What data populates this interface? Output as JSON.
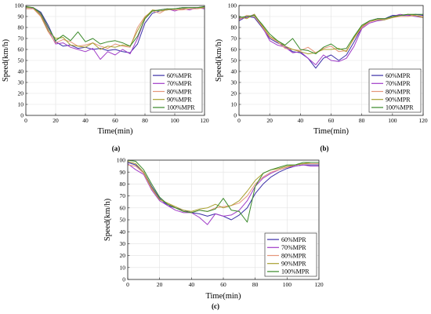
{
  "legend": [
    "60%MPR",
    "70%MPR",
    "80%MPR",
    "90%MPR",
    "100%MPR"
  ],
  "series_colors": [
    "#3b2fa8",
    "#a03cc8",
    "#e6967a",
    "#a8a030",
    "#3a8a2a"
  ],
  "panels": [
    "(a)",
    "(b)",
    "(c)"
  ],
  "xlabel": "Time(min)",
  "ylabel": "Speed(km/h)",
  "xticks": [
    "0",
    "20",
    "40",
    "60",
    "80",
    "100",
    "120"
  ],
  "yticks": [
    "0",
    "10",
    "20",
    "30",
    "40",
    "50",
    "60",
    "70",
    "80",
    "90",
    "100"
  ],
  "chart_data": [
    {
      "type": "line",
      "panel": "(a)",
      "xlabel": "Time(min)",
      "ylabel": "Speed(km/h)",
      "xlim": [
        0,
        120
      ],
      "ylim": [
        0,
        100
      ],
      "grid": true,
      "legend_position": "lower-right",
      "series": [
        {
          "name": "60%MPR",
          "x": [
            0,
            5,
            10,
            15,
            20,
            25,
            30,
            35,
            40,
            45,
            50,
            55,
            60,
            65,
            70,
            75,
            80,
            85,
            90,
            95,
            100,
            105,
            110,
            115,
            120
          ],
          "y": [
            98,
            98,
            94,
            82,
            67,
            63,
            64,
            61,
            62,
            60,
            61,
            59,
            60,
            58,
            57,
            65,
            84,
            93,
            95,
            96,
            97,
            98,
            98,
            98,
            99
          ]
        },
        {
          "name": "70%MPR",
          "x": [
            0,
            5,
            10,
            15,
            20,
            25,
            30,
            35,
            40,
            45,
            50,
            55,
            60,
            65,
            70,
            75,
            80,
            85,
            90,
            95,
            100,
            105,
            110,
            115,
            120
          ],
          "y": [
            99,
            97,
            92,
            78,
            65,
            66,
            62,
            60,
            58,
            61,
            51,
            58,
            55,
            60,
            56,
            70,
            88,
            95,
            96,
            97,
            95,
            97,
            96,
            98,
            97
          ]
        },
        {
          "name": "80%MPR",
          "x": [
            0,
            5,
            10,
            15,
            20,
            25,
            30,
            35,
            40,
            45,
            50,
            55,
            60,
            65,
            70,
            75,
            80,
            85,
            90,
            95,
            100,
            105,
            110,
            115,
            120
          ],
          "y": [
            97,
            97,
            90,
            76,
            66,
            69,
            67,
            63,
            64,
            66,
            63,
            61,
            65,
            63,
            62,
            80,
            90,
            95,
            93,
            97,
            96,
            96,
            97,
            97,
            98
          ]
        },
        {
          "name": "90%MPR",
          "x": [
            0,
            5,
            10,
            15,
            20,
            25,
            30,
            35,
            40,
            45,
            50,
            55,
            60,
            65,
            70,
            75,
            80,
            85,
            90,
            95,
            100,
            105,
            110,
            115,
            120
          ],
          "y": [
            98,
            98,
            91,
            77,
            70,
            71,
            64,
            63,
            62,
            66,
            60,
            63,
            62,
            64,
            63,
            77,
            89,
            96,
            95,
            96,
            97,
            97,
            98,
            98,
            98
          ]
        },
        {
          "name": "100%MPR",
          "x": [
            0,
            5,
            10,
            15,
            20,
            25,
            30,
            35,
            40,
            45,
            50,
            55,
            60,
            65,
            70,
            75,
            80,
            85,
            90,
            95,
            100,
            105,
            110,
            115,
            120
          ],
          "y": [
            99,
            98,
            93,
            80,
            68,
            73,
            68,
            76,
            67,
            70,
            65,
            67,
            68,
            66,
            63,
            72,
            88,
            95,
            96,
            97,
            97,
            98,
            98,
            98,
            99
          ]
        }
      ]
    },
    {
      "type": "line",
      "panel": "(b)",
      "xlabel": "Time(min)",
      "ylabel": "Speed(km/h)",
      "xlim": [
        0,
        120
      ],
      "ylim": [
        0,
        100
      ],
      "grid": true,
      "legend_position": "lower-right",
      "series": [
        {
          "name": "60%MPR",
          "x": [
            0,
            5,
            10,
            15,
            20,
            25,
            30,
            35,
            40,
            45,
            50,
            55,
            60,
            65,
            70,
            75,
            80,
            85,
            90,
            95,
            100,
            105,
            110,
            115,
            120
          ],
          "y": [
            86,
            90,
            89,
            80,
            70,
            66,
            63,
            58,
            57,
            52,
            43,
            52,
            55,
            50,
            55,
            67,
            80,
            86,
            88,
            88,
            91,
            91,
            91,
            92,
            91
          ]
        },
        {
          "name": "70%MPR",
          "x": [
            0,
            5,
            10,
            15,
            20,
            25,
            30,
            35,
            40,
            45,
            50,
            55,
            60,
            65,
            70,
            75,
            80,
            85,
            90,
            95,
            100,
            105,
            110,
            115,
            120
          ],
          "y": [
            88,
            89,
            92,
            81,
            68,
            64,
            62,
            57,
            58,
            52,
            46,
            55,
            50,
            49,
            52,
            63,
            79,
            84,
            86,
            87,
            90,
            92,
            91,
            90,
            89
          ]
        },
        {
          "name": "80%MPR",
          "x": [
            0,
            5,
            10,
            15,
            20,
            25,
            30,
            35,
            40,
            45,
            50,
            55,
            60,
            65,
            70,
            75,
            80,
            85,
            90,
            95,
            100,
            105,
            110,
            115,
            120
          ],
          "y": [
            87,
            91,
            90,
            81,
            71,
            67,
            61,
            60,
            59,
            62,
            57,
            61,
            63,
            58,
            59,
            70,
            80,
            85,
            87,
            88,
            89,
            90,
            90,
            91,
            90
          ]
        },
        {
          "name": "90%MPR",
          "x": [
            0,
            5,
            10,
            15,
            20,
            25,
            30,
            35,
            40,
            45,
            50,
            55,
            60,
            65,
            70,
            75,
            80,
            85,
            90,
            95,
            100,
            105,
            110,
            115,
            120
          ],
          "y": [
            90,
            88,
            92,
            82,
            72,
            68,
            63,
            60,
            58,
            56,
            57,
            60,
            60,
            61,
            58,
            71,
            81,
            86,
            87,
            87,
            89,
            91,
            92,
            91,
            89
          ]
        },
        {
          "name": "100%MPR",
          "x": [
            0,
            5,
            10,
            15,
            20,
            25,
            30,
            35,
            40,
            45,
            50,
            55,
            60,
            65,
            70,
            75,
            80,
            85,
            90,
            95,
            100,
            105,
            110,
            115,
            120
          ],
          "y": [
            89,
            90,
            91,
            83,
            74,
            68,
            64,
            70,
            60,
            59,
            56,
            62,
            65,
            60,
            61,
            72,
            82,
            86,
            88,
            88,
            90,
            91,
            92,
            92,
            92
          ]
        }
      ]
    },
    {
      "type": "line",
      "panel": "(c)",
      "xlabel": "Time(min)",
      "ylabel": "Speed(km/h)",
      "xlim": [
        0,
        120
      ],
      "ylim": [
        0,
        100
      ],
      "grid": true,
      "legend_position": "lower-right",
      "series": [
        {
          "name": "60%MPR",
          "x": [
            0,
            5,
            10,
            15,
            20,
            25,
            30,
            35,
            40,
            45,
            50,
            55,
            60,
            65,
            70,
            75,
            80,
            85,
            90,
            95,
            100,
            105,
            110,
            115,
            120
          ],
          "y": [
            98,
            96,
            90,
            78,
            68,
            62,
            60,
            58,
            56,
            55,
            53,
            55,
            53,
            50,
            54,
            60,
            72,
            80,
            86,
            90,
            93,
            95,
            96,
            96,
            96
          ]
        },
        {
          "name": "70%MPR",
          "x": [
            0,
            5,
            10,
            15,
            20,
            25,
            30,
            35,
            40,
            45,
            50,
            55,
            60,
            65,
            70,
            75,
            80,
            85,
            90,
            95,
            100,
            105,
            110,
            115,
            120
          ],
          "y": [
            97,
            92,
            88,
            75,
            66,
            62,
            58,
            56,
            56,
            52,
            46,
            55,
            53,
            54,
            58,
            66,
            78,
            85,
            89,
            92,
            94,
            95,
            96,
            95,
            95
          ]
        },
        {
          "name": "80%MPR",
          "x": [
            0,
            5,
            10,
            15,
            20,
            25,
            30,
            35,
            40,
            45,
            50,
            55,
            60,
            65,
            70,
            75,
            80,
            85,
            90,
            95,
            100,
            105,
            110,
            115,
            120
          ],
          "y": [
            96,
            95,
            89,
            76,
            67,
            64,
            60,
            57,
            56,
            58,
            57,
            60,
            61,
            62,
            64,
            70,
            80,
            86,
            90,
            92,
            94,
            96,
            97,
            97,
            97
          ]
        },
        {
          "name": "90%MPR",
          "x": [
            0,
            5,
            10,
            15,
            20,
            25,
            30,
            35,
            40,
            45,
            50,
            55,
            60,
            65,
            70,
            75,
            80,
            85,
            90,
            95,
            100,
            105,
            110,
            115,
            120
          ],
          "y": [
            99,
            97,
            90,
            77,
            67,
            64,
            61,
            58,
            57,
            59,
            60,
            63,
            60,
            62,
            66,
            74,
            83,
            89,
            92,
            93,
            95,
            96,
            97,
            98,
            98
          ]
        },
        {
          "name": "100%MPR",
          "x": [
            0,
            5,
            10,
            15,
            20,
            25,
            30,
            35,
            40,
            45,
            50,
            55,
            60,
            65,
            70,
            75,
            80,
            85,
            90,
            95,
            100,
            105,
            110,
            115,
            120
          ],
          "y": [
            100,
            99,
            92,
            80,
            69,
            63,
            60,
            57,
            56,
            58,
            57,
            59,
            68,
            58,
            57,
            48,
            78,
            89,
            92,
            94,
            96,
            96,
            98,
            98,
            98
          ]
        }
      ]
    }
  ]
}
